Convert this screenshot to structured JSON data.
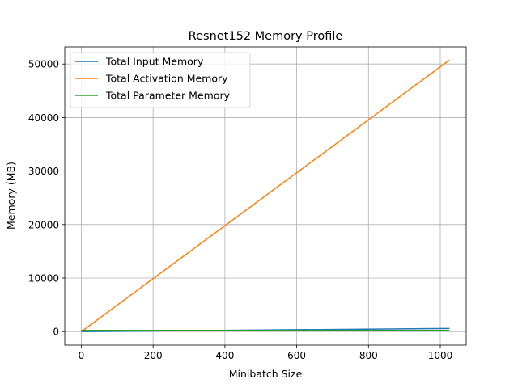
{
  "chart_data": {
    "type": "line",
    "title": "Resnet152 Memory Profile",
    "xlabel": "Minibatch Size",
    "ylabel": "Memory (MB)",
    "xlim": [
      -46.15,
      1072.15
    ],
    "ylim": [
      -2533.5,
      53203.9
    ],
    "xticks": [
      0,
      200,
      400,
      600,
      800,
      1000
    ],
    "yticks": [
      0,
      10000,
      20000,
      30000,
      40000,
      50000
    ],
    "grid": true,
    "legend_position": "upper-left",
    "series": [
      {
        "name": "Total Input Memory",
        "color": "#1f77b4",
        "x": [
          1,
          1024
        ],
        "y": [
          0.6,
          588
        ]
      },
      {
        "name": "Total Activation Memory",
        "color": "#ff7f0e",
        "x": [
          1,
          1024
        ],
        "y": [
          49.6,
          50670
        ]
      },
      {
        "name": "Total Parameter Memory",
        "color": "#2ca02c",
        "x": [
          1,
          1024
        ],
        "y": [
          230,
          230
        ]
      }
    ]
  }
}
